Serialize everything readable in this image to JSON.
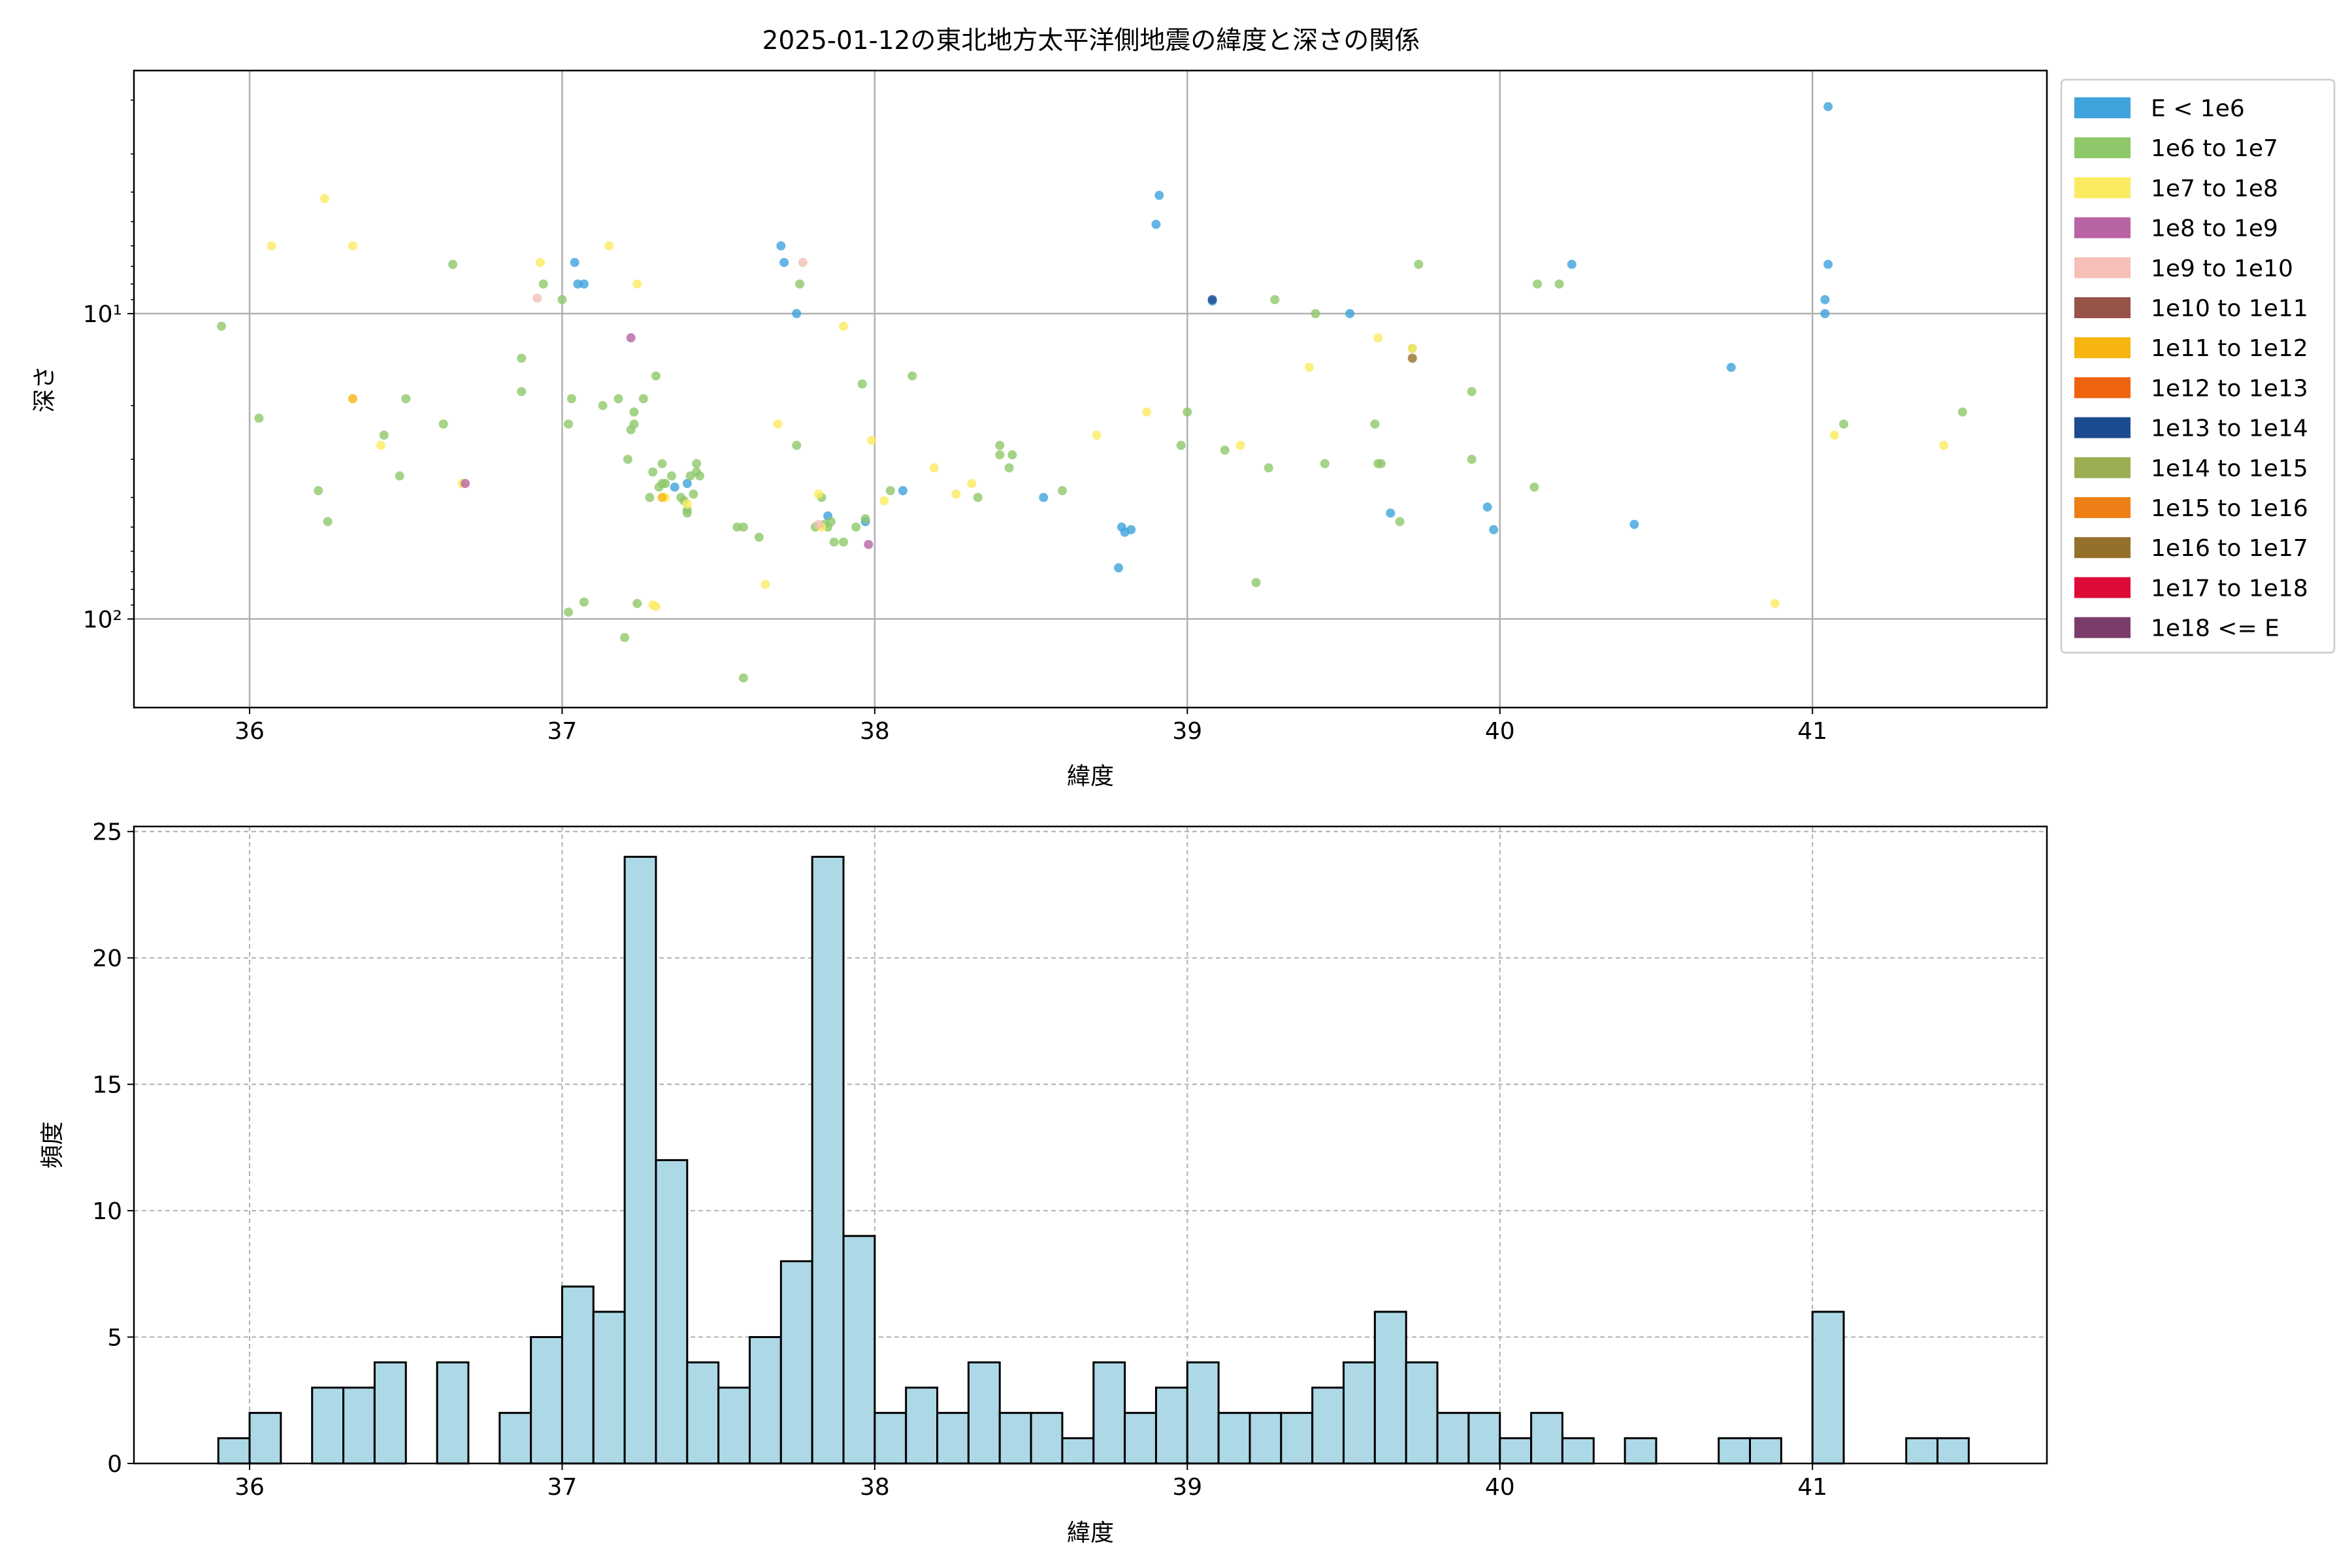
{
  "chart_data": [
    {
      "type": "scatter",
      "title": "2025-01-12の東北地方太平洋側地震の緯度と深さの関係",
      "xlabel": "緯度",
      "ylabel": "深さ",
      "xlim": [
        35.63,
        41.75
      ],
      "ylim": [
        195,
        1.6
      ],
      "y_scale": "log",
      "y_inverted": true,
      "grid": true,
      "xticks": [
        "36",
        "37",
        "38",
        "39",
        "40",
        "41"
      ],
      "yticks": [
        {
          "value": 10,
          "label": "10¹"
        },
        {
          "value": 100,
          "label": "10²"
        }
      ],
      "legend_position": "outside-right",
      "legend": [
        {
          "label": "E < 1e6",
          "color": "#3fa3dc"
        },
        {
          "label": "1e6 to 1e7",
          "color": "#8fc86a"
        },
        {
          "label": "1e7 to 1e8",
          "color": "#fbeb60"
        },
        {
          "label": "1e8 to 1e9",
          "color": "#b863a4"
        },
        {
          "label": "1e9 to 1e10",
          "color": "#f4c0b8"
        },
        {
          "label": "1e10 to 1e11",
          "color": "#985349"
        },
        {
          "label": "1e11 to 1e12",
          "color": "#f7b50f"
        },
        {
          "label": "1e12 to 1e13",
          "color": "#ee640e"
        },
        {
          "label": "1e13 to 1e14",
          "color": "#1d4b8f"
        },
        {
          "label": "1e14 to 1e15",
          "color": "#9bae52"
        },
        {
          "label": "1e15 to 1e16",
          "color": "#ec7f16"
        },
        {
          "label": "1e16 to 1e17",
          "color": "#95702b"
        },
        {
          "label": "1e17 to 1e18",
          "color": "#de0b39"
        },
        {
          "label": "1e18 <= E",
          "color": "#7a3d6a"
        }
      ],
      "series": [
        {
          "name": "E < 1e6",
          "points": [
            [
              37.04,
              6.8
            ],
            [
              37.05,
              8
            ],
            [
              37.07,
              8
            ],
            [
              37.4,
              36
            ],
            [
              37.36,
              37
            ],
            [
              37.7,
              6
            ],
            [
              37.71,
              6.8
            ],
            [
              37.75,
              10
            ],
            [
              37.85,
              46
            ],
            [
              37.97,
              48
            ],
            [
              38.09,
              38
            ],
            [
              38.54,
              40
            ],
            [
              38.79,
              50
            ],
            [
              38.8,
              52
            ],
            [
              38.82,
              51
            ],
            [
              38.78,
              68
            ],
            [
              38.91,
              4.1
            ],
            [
              38.9,
              5.1
            ],
            [
              39.08,
              9.1
            ],
            [
              39.52,
              10
            ],
            [
              39.65,
              45
            ],
            [
              39.96,
              43
            ],
            [
              39.98,
              51
            ],
            [
              40.23,
              6.9
            ],
            [
              40.43,
              49
            ],
            [
              40.74,
              15
            ],
            [
              41.05,
              2.1
            ],
            [
              41.05,
              6.9
            ],
            [
              41.04,
              9
            ],
            [
              41.04,
              10
            ]
          ]
        },
        {
          "name": "1e6 to 1e7",
          "points": [
            [
              35.91,
              11
            ],
            [
              36.03,
              22
            ],
            [
              36.22,
              38
            ],
            [
              36.25,
              48
            ],
            [
              36.43,
              25
            ],
            [
              36.48,
              34
            ],
            [
              36.5,
              19
            ],
            [
              36.62,
              23
            ],
            [
              36.65,
              6.9
            ],
            [
              36.87,
              14
            ],
            [
              36.87,
              18
            ],
            [
              36.94,
              8
            ],
            [
              37,
              9
            ],
            [
              37.02,
              95
            ],
            [
              37.02,
              23
            ],
            [
              37.03,
              19
            ],
            [
              37.07,
              88
            ],
            [
              37.13,
              20
            ],
            [
              37.18,
              19
            ],
            [
              37.2,
              115
            ],
            [
              37.21,
              30
            ],
            [
              37.22,
              24
            ],
            [
              37.23,
              21
            ],
            [
              37.23,
              23
            ],
            [
              37.24,
              89
            ],
            [
              37.26,
              19
            ],
            [
              37.28,
              40
            ],
            [
              37.29,
              33
            ],
            [
              37.3,
              16
            ],
            [
              37.31,
              37
            ],
            [
              37.32,
              31
            ],
            [
              37.32,
              36
            ],
            [
              37.33,
              36
            ],
            [
              37.35,
              34
            ],
            [
              37.38,
              40
            ],
            [
              37.39,
              41
            ],
            [
              37.4,
              45
            ],
            [
              37.4,
              44
            ],
            [
              37.41,
              34
            ],
            [
              37.42,
              39
            ],
            [
              37.43,
              33
            ],
            [
              37.43,
              31
            ],
            [
              37.44,
              34
            ],
            [
              37.56,
              50
            ],
            [
              37.58,
              50
            ],
            [
              37.58,
              156
            ],
            [
              37.63,
              54
            ],
            [
              37.75,
              27
            ],
            [
              37.76,
              8
            ],
            [
              37.81,
              50
            ],
            [
              37.83,
              40
            ],
            [
              37.84,
              49
            ],
            [
              37.85,
              50
            ],
            [
              37.86,
              48
            ],
            [
              37.87,
              56
            ],
            [
              37.9,
              56
            ],
            [
              37.94,
              50
            ],
            [
              37.96,
              17
            ],
            [
              37.97,
              47
            ],
            [
              38.05,
              38
            ],
            [
              38.12,
              16
            ],
            [
              38.33,
              40
            ],
            [
              38.4,
              29
            ],
            [
              38.4,
              27
            ],
            [
              38.44,
              29
            ],
            [
              38.43,
              32
            ],
            [
              38.6,
              38
            ],
            [
              38.98,
              27
            ],
            [
              39,
              21
            ],
            [
              39.12,
              28
            ],
            [
              39.22,
              76
            ],
            [
              39.26,
              32
            ],
            [
              39.28,
              9
            ],
            [
              39.41,
              10
            ],
            [
              39.44,
              31
            ],
            [
              39.6,
              23
            ],
            [
              39.61,
              31
            ],
            [
              39.62,
              31
            ],
            [
              39.68,
              48
            ],
            [
              39.72,
              13
            ],
            [
              39.74,
              6.9
            ],
            [
              39.91,
              30
            ],
            [
              39.91,
              18
            ],
            [
              40.11,
              37
            ],
            [
              40.12,
              8
            ],
            [
              40.19,
              8
            ],
            [
              41.1,
              23
            ],
            [
              41.48,
              21
            ]
          ]
        },
        {
          "name": "1e7 to 1e8",
          "points": [
            [
              36.07,
              6
            ],
            [
              36.24,
              4.2
            ],
            [
              36.33,
              6
            ],
            [
              36.42,
              27
            ],
            [
              36.68,
              36
            ],
            [
              36.93,
              6.8
            ],
            [
              37.15,
              6
            ],
            [
              37.24,
              8
            ],
            [
              37.29,
              90
            ],
            [
              37.3,
              91
            ],
            [
              37.33,
              40
            ],
            [
              37.4,
              42
            ],
            [
              37.65,
              77
            ],
            [
              37.69,
              23
            ],
            [
              37.82,
              39
            ],
            [
              37.83,
              50
            ],
            [
              37.9,
              11
            ],
            [
              37.99,
              26
            ],
            [
              38.03,
              41
            ],
            [
              38.19,
              32
            ],
            [
              38.26,
              39
            ],
            [
              38.31,
              36
            ],
            [
              38.71,
              25
            ],
            [
              38.87,
              21
            ],
            [
              39.17,
              27
            ],
            [
              39.39,
              15
            ],
            [
              39.61,
              12
            ],
            [
              39.72,
              13
            ],
            [
              40.88,
              89
            ],
            [
              41.07,
              25
            ],
            [
              41.42,
              27
            ]
          ]
        },
        {
          "name": "1e8 to 1e9",
          "points": [
            [
              36.69,
              36
            ],
            [
              37.22,
              12
            ],
            [
              37.98,
              57
            ]
          ]
        },
        {
          "name": "1e9 to 1e10",
          "points": [
            [
              36.92,
              8.9
            ],
            [
              37.77,
              6.8
            ],
            [
              37.82,
              49
            ]
          ]
        },
        {
          "name": "1e11 to 1e12",
          "points": [
            [
              36.33,
              19
            ],
            [
              37.32,
              40
            ]
          ]
        },
        {
          "name": "1e13 to 1e14",
          "points": [
            [
              39.08,
              9
            ]
          ]
        },
        {
          "name": "1e16 to 1e17",
          "points": [
            [
              39.72,
              14
            ]
          ]
        }
      ]
    },
    {
      "type": "bar",
      "subtype": "histogram",
      "xlabel": "緯度",
      "ylabel": "頻度",
      "xlim": [
        35.63,
        41.75
      ],
      "ylim": [
        0,
        25.2
      ],
      "grid": true,
      "grid_style": "dashed",
      "bar_color": "#add8e6",
      "edge_color": "#000000",
      "xticks": [
        "36",
        "37",
        "38",
        "39",
        "40",
        "41"
      ],
      "yticks": [
        "0",
        "5",
        "10",
        "15",
        "20",
        "25"
      ],
      "bin_start": 35.9,
      "bin_width": 0.1,
      "counts": [
        1,
        2,
        0,
        3,
        3,
        4,
        0,
        4,
        0,
        2,
        5,
        7,
        6,
        24,
        12,
        4,
        3,
        5,
        8,
        24,
        9,
        2,
        3,
        2,
        4,
        2,
        2,
        1,
        4,
        2,
        3,
        4,
        2,
        2,
        2,
        3,
        4,
        6,
        4,
        2,
        2,
        1,
        2,
        1,
        0,
        1,
        0,
        0,
        1,
        1,
        0,
        6,
        0,
        0,
        1,
        1
      ]
    }
  ]
}
